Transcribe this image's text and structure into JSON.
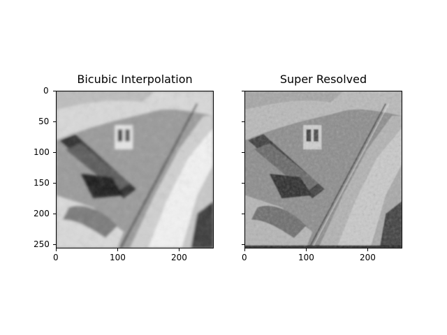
{
  "figure": {
    "panels": [
      {
        "title": "Bicubic Interpolation",
        "image_description": "grayscale aerial satellite image, blurry (bicubic upscale)",
        "xticks": [
          "0",
          "100",
          "200"
        ],
        "yticks": [
          "0",
          "50",
          "100",
          "150",
          "200",
          "250"
        ],
        "show_ytick_labels": true
      },
      {
        "title": "Super Resolved",
        "image_description": "grayscale aerial satellite image, sharper (super-resolution output)",
        "xticks": [
          "0",
          "100",
          "200"
        ],
        "yticks": [
          "0",
          "50",
          "100",
          "150",
          "200",
          "250"
        ],
        "show_ytick_labels": false
      }
    ],
    "image_extent": [
      0,
      256
    ]
  },
  "colors": {
    "background": "#ffffff",
    "axis": "#000000"
  }
}
